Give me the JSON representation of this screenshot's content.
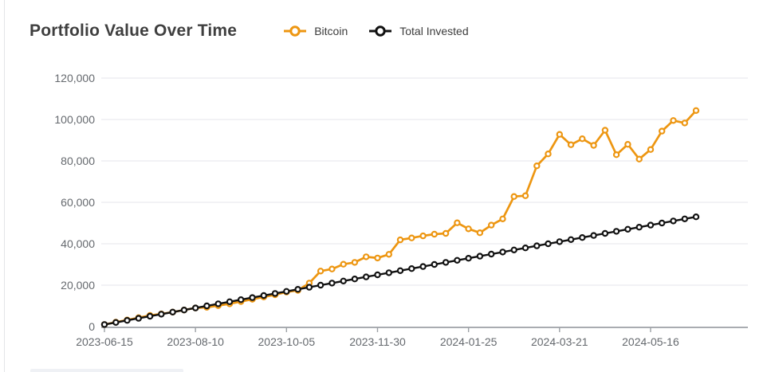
{
  "header": {
    "title": "Portfolio Value Over Time"
  },
  "legend": [
    {
      "label": "Bitcoin",
      "color": "#ED9611"
    },
    {
      "label": "Total Invested",
      "color": "#111111"
    }
  ],
  "colors": {
    "bitcoin_line": "#ED9611",
    "invested_line": "#111111",
    "grid_line": "#edeef2",
    "axis_line": "#9da1a6",
    "axis_text": "#65696e",
    "title_text": "#3f3f3f"
  },
  "chart_data": {
    "type": "line",
    "title": "Portfolio Value Over Time",
    "xlabel": "",
    "ylabel": "",
    "ylim": [
      0,
      120000
    ],
    "y_ticks": [
      0,
      20000,
      40000,
      60000,
      80000,
      100000,
      120000
    ],
    "y_tick_labels": [
      "0",
      "20,000",
      "40,000",
      "60,000",
      "80,000",
      "100,000",
      "120,000"
    ],
    "grid": "horizontal",
    "legend_position": "top",
    "marker": "open-circle",
    "x": [
      "2023-06-15",
      "2023-06-22",
      "2023-06-29",
      "2023-07-06",
      "2023-07-13",
      "2023-07-20",
      "2023-07-27",
      "2023-08-03",
      "2023-08-10",
      "2023-08-17",
      "2023-08-24",
      "2023-08-31",
      "2023-09-07",
      "2023-09-14",
      "2023-09-21",
      "2023-09-28",
      "2023-10-05",
      "2023-10-12",
      "2023-10-19",
      "2023-10-26",
      "2023-11-02",
      "2023-11-09",
      "2023-11-16",
      "2023-11-23",
      "2023-11-30",
      "2023-12-07",
      "2023-12-14",
      "2023-12-21",
      "2023-12-28",
      "2024-01-04",
      "2024-01-11",
      "2024-01-18",
      "2024-01-25",
      "2024-02-01",
      "2024-02-08",
      "2024-02-15",
      "2024-02-22",
      "2024-02-29",
      "2024-03-07",
      "2024-03-14",
      "2024-03-21",
      "2024-03-28",
      "2024-04-04",
      "2024-04-11",
      "2024-04-18",
      "2024-04-25",
      "2024-05-02",
      "2024-05-09",
      "2024-05-16",
      "2024-05-23",
      "2024-05-30",
      "2024-06-06",
      "2024-06-13"
    ],
    "x_tick_indices": [
      0,
      8,
      16,
      24,
      32,
      40,
      48
    ],
    "x_tick_labels": [
      "2023-06-15",
      "2023-08-10",
      "2023-10-05",
      "2023-11-30",
      "2024-01-25",
      "2024-03-21",
      "2024-05-16"
    ],
    "series": [
      {
        "name": "Bitcoin",
        "color": "#ED9611",
        "values": [
          1000,
          2100,
          3200,
          4300,
          5400,
          6100,
          7000,
          8000,
          9000,
          9300,
          10100,
          11000,
          12100,
          13200,
          14300,
          15400,
          16700,
          17500,
          21000,
          26800,
          27800,
          30100,
          31000,
          33700,
          33100,
          34900,
          41900,
          42800,
          43800,
          44600,
          45000,
          50100,
          47200,
          45300,
          49000,
          52000,
          62800,
          63200,
          77600,
          83400,
          92800,
          87800,
          90700,
          87500,
          94800,
          83000,
          88000,
          80900,
          85500,
          94400,
          99500,
          98300,
          104300
        ]
      },
      {
        "name": "Total Invested",
        "color": "#111111",
        "values": [
          1000,
          2000,
          3000,
          4000,
          5000,
          6000,
          7000,
          8000,
          9000,
          10000,
          11000,
          12000,
          13000,
          14000,
          15000,
          16000,
          17000,
          18000,
          19000,
          20000,
          21000,
          22000,
          23000,
          24000,
          25000,
          26000,
          27000,
          28000,
          29000,
          30000,
          31000,
          32000,
          33000,
          34000,
          35000,
          36000,
          37000,
          38000,
          39000,
          40000,
          41000,
          42000,
          43000,
          44000,
          45000,
          46000,
          47000,
          48000,
          49000,
          50000,
          51000,
          52000,
          53000
        ]
      }
    ]
  }
}
